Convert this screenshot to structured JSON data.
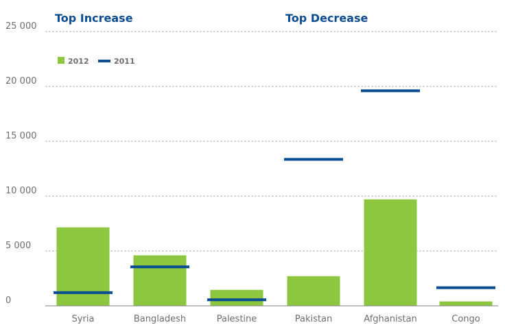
{
  "chart_data": {
    "type": "bar",
    "ylim": [
      0,
      25000
    ],
    "yticks": [
      {
        "value": 0,
        "label": "0"
      },
      {
        "value": 5000,
        "label": "5 000"
      },
      {
        "value": 10000,
        "label": "10 000"
      },
      {
        "value": 15000,
        "label": "15 000"
      },
      {
        "value": 20000,
        "label": "20 000"
      },
      {
        "value": 25000,
        "label": "25 000"
      }
    ],
    "grid": true,
    "legend": {
      "position": "top-left",
      "items": [
        {
          "label": "2012",
          "kind": "bar"
        },
        {
          "label": "2011",
          "kind": "line"
        }
      ]
    },
    "colors": {
      "bar_2012": "#8dc63f",
      "marker_2011": "#0b4c92",
      "title": "#0b4c92",
      "grid": "#b3b3b3",
      "text": "#6d6e71"
    },
    "panels": [
      {
        "title": "Top Increase",
        "categories": [
          "Syria",
          "Bangladesh",
          "Palestine"
        ],
        "series": [
          {
            "name": "2012",
            "values": [
              7150,
              4600,
              1450
            ]
          },
          {
            "name": "2011",
            "values": [
              1200,
              3550,
              550
            ]
          }
        ]
      },
      {
        "title": "Top Decrease",
        "categories": [
          "Pakistan",
          "Afghanistan",
          "Congo"
        ],
        "series": [
          {
            "name": "2012",
            "values": [
              2700,
              9700,
              400
            ]
          },
          {
            "name": "2011",
            "values": [
              13350,
              19600,
              1650
            ]
          }
        ]
      }
    ]
  }
}
